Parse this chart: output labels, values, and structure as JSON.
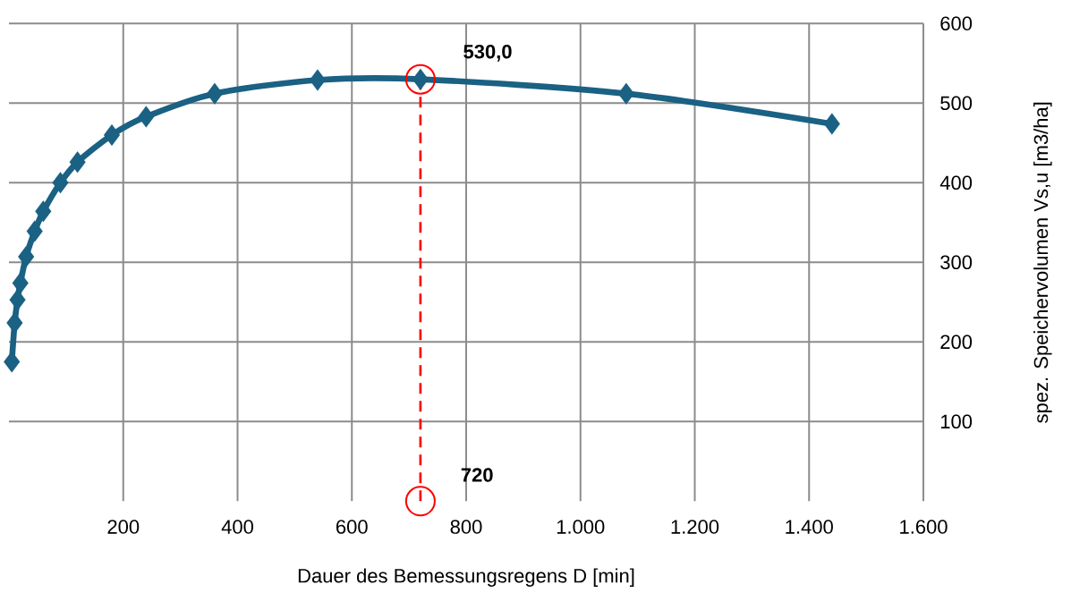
{
  "chart_data": {
    "type": "line",
    "xlabel": "Dauer des Bemessungsregens D [min]",
    "ylabel": "spez. Speichervolumen Vs,u [m3/ha]",
    "x": [
      5,
      10,
      15,
      20,
      30,
      45,
      60,
      90,
      120,
      180,
      240,
      360,
      540,
      720,
      1080,
      1440
    ],
    "series": [
      {
        "color": "#1a6183",
        "values": [
          175,
          224,
          253,
          274,
          307,
          339,
          364,
          400,
          426,
          460,
          483,
          512,
          529,
          530,
          512,
          474
        ]
      }
    ],
    "xlim": [
      0,
      1600
    ],
    "xticks": [
      200,
      400,
      600,
      800,
      {
        "value": 1000,
        "label": "1.000"
      },
      {
        "value": 1200,
        "label": "1.200"
      },
      {
        "value": 1400,
        "label": "1.400"
      },
      {
        "value": 1600,
        "label": "1.600"
      }
    ],
    "ylim": [
      0,
      600
    ],
    "yticks": [
      100,
      200,
      300,
      400,
      500,
      600
    ],
    "grid": true,
    "marker": "diamond",
    "line_style": "solid",
    "ref_lines": [
      {
        "axis": "x",
        "value": 720,
        "color": "#ff0000",
        "line_style": "dashed"
      }
    ],
    "annotations": [
      {
        "text": "530,0",
        "x": 720,
        "y": 530
      },
      {
        "text": "720",
        "x": 720,
        "y": 0
      }
    ]
  }
}
